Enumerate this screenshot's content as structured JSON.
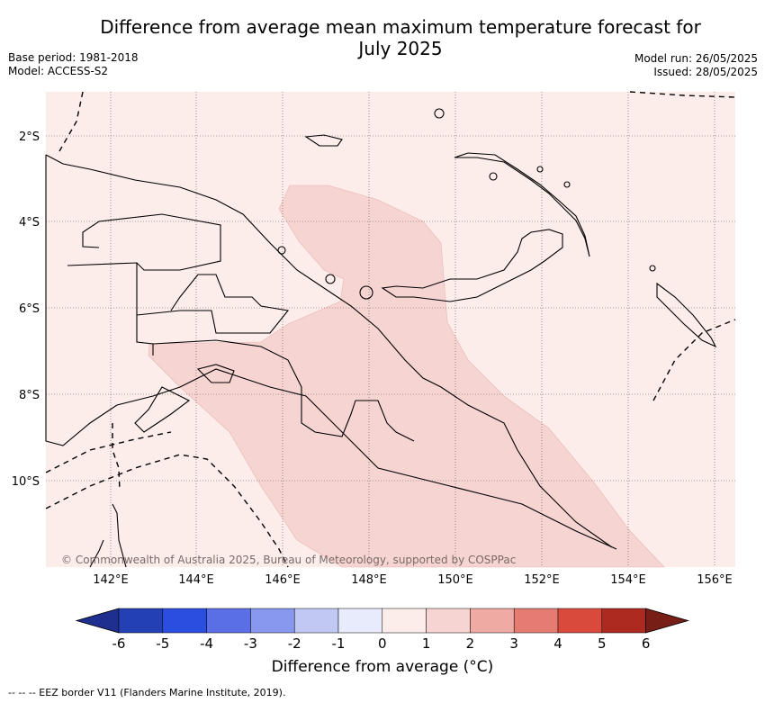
{
  "title_line1": "Difference from average mean maximum temperature forecast for",
  "title_line2": "July 2025",
  "base_period": "Base period: 1981-2018",
  "model": "Model: ACCESS-S2",
  "model_run": "Model run: 26/05/2025",
  "issued": "Issued: 28/05/2025",
  "copyright": "© Commonwealth of Australia 2025, Bureau of Meteorology, supported by COSPPac",
  "lon_labels": [
    "142°E",
    "144°E",
    "146°E",
    "148°E",
    "150°E",
    "152°E",
    "154°E",
    "156°E"
  ],
  "lat_labels": [
    "2°S",
    "4°S",
    "6°S",
    "8°S",
    "10°S"
  ],
  "colorbar": {
    "ticks": [
      "-6",
      "-5",
      "-4",
      "-3",
      "-2",
      "-1",
      "0",
      "1",
      "2",
      "3",
      "4",
      "5",
      "6"
    ],
    "colors": [
      "#1f2f8f",
      "#2440b5",
      "#2c4ee0",
      "#5a6ee6",
      "#8898ee",
      "#c2c8f4",
      "#e8ebfb",
      "#fcecea",
      "#f6d4d1",
      "#efaaa4",
      "#e67b72",
      "#da4a3c",
      "#ad2a21",
      "#771e17"
    ],
    "label": "Difference from average (°C)"
  },
  "legend_note": "--  --  -- EEZ border V11 (Flanders Marine Institute, 2019).",
  "map_colors": {
    "background": "#fcecea",
    "anomaly_1_2": "#f6d4d1"
  }
}
